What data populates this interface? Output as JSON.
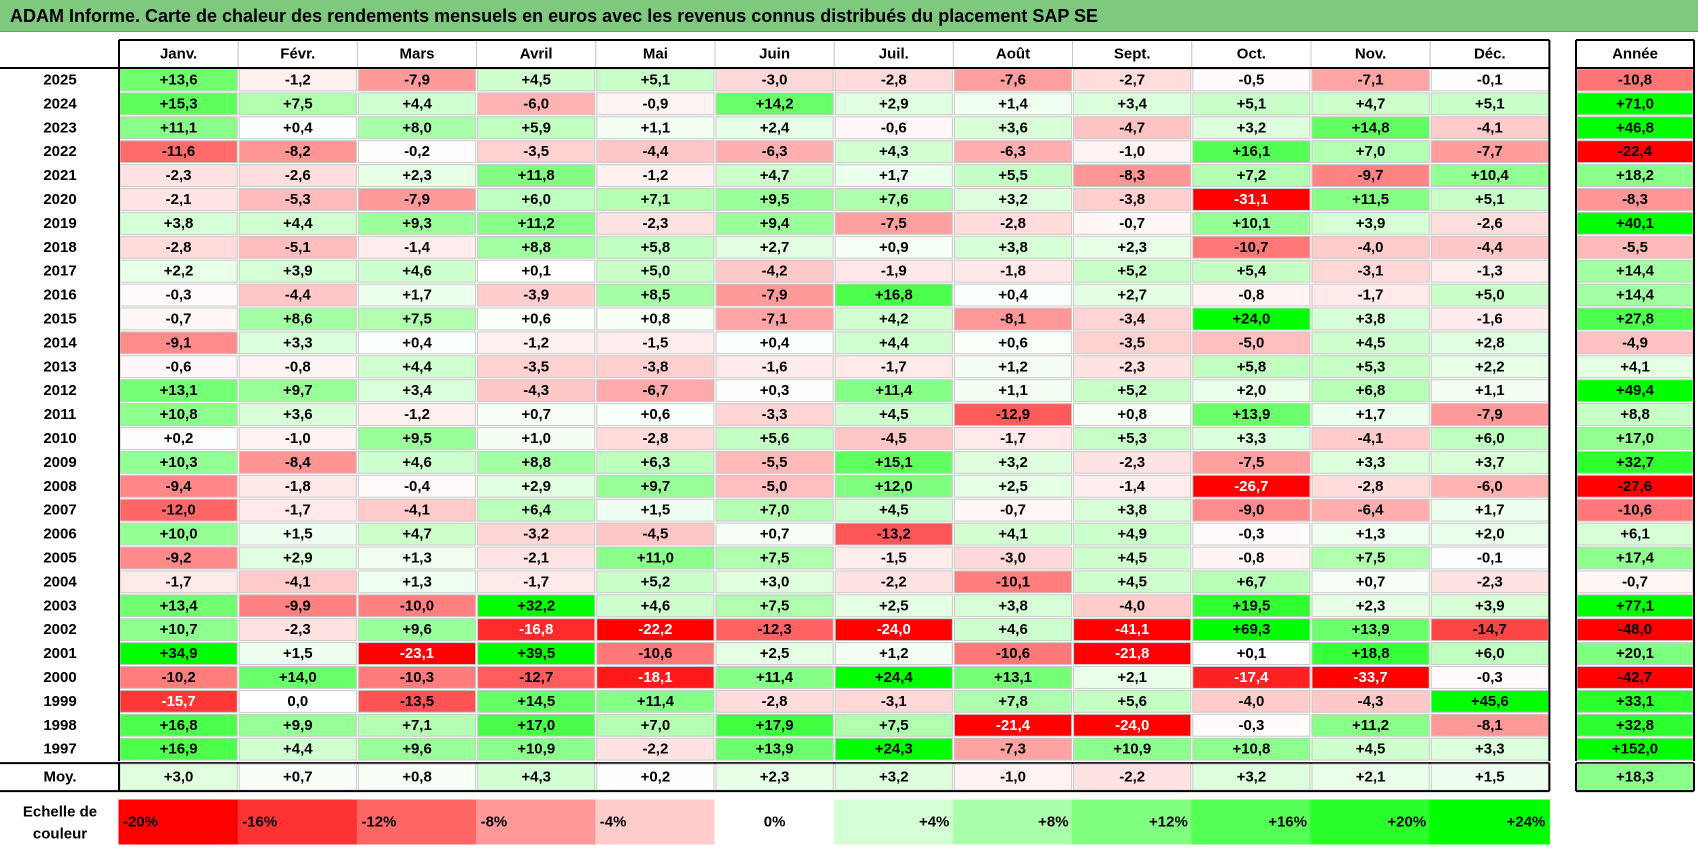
{
  "title": "ADAM Informe. Carte de chaleur des rendements mensuels en euros avec les revenus connus distribués du placement SAP SE",
  "chart_data": {
    "type": "heatmap",
    "columns": [
      "Janv.",
      "Févr.",
      "Mars",
      "Avril",
      "Mai",
      "Juin",
      "Juil.",
      "Août",
      "Sept.",
      "Oct.",
      "Nov.",
      "Déc."
    ],
    "year_column": "Année",
    "rows": [
      "2025",
      "2024",
      "2023",
      "2022",
      "2021",
      "2020",
      "2019",
      "2018",
      "2017",
      "2016",
      "2015",
      "2014",
      "2013",
      "2012",
      "2011",
      "2010",
      "2009",
      "2008",
      "2007",
      "2006",
      "2005",
      "2004",
      "2003",
      "2002",
      "2001",
      "2000",
      "1999",
      "1998",
      "1997"
    ],
    "values": [
      [
        "+13,6",
        "-1,2",
        "-7,9",
        "+4,5",
        "+5,1",
        "-3,0",
        "-2,8",
        "-7,6",
        "-2,7",
        "-0,5",
        "-7,1",
        "-0,1"
      ],
      [
        "+15,3",
        "+7,5",
        "+4,4",
        "-6,0",
        "-0,9",
        "+14,2",
        "+2,9",
        "+1,4",
        "+3,4",
        "+5,1",
        "+4,7",
        "+5,1"
      ],
      [
        "+11,1",
        "+0,4",
        "+8,0",
        "+5,9",
        "+1,1",
        "+2,4",
        "-0,6",
        "+3,6",
        "-4,7",
        "+3,2",
        "+14,8",
        "-4,1"
      ],
      [
        "-11,6",
        "-8,2",
        "-0,2",
        "-3,5",
        "-4,4",
        "-6,3",
        "+4,3",
        "-6,3",
        "-1,0",
        "+16,1",
        "+7,0",
        "-7,7"
      ],
      [
        "-2,3",
        "-2,6",
        "+2,3",
        "+11,8",
        "-1,2",
        "+4,7",
        "+1,7",
        "+5,5",
        "-8,3",
        "+7,2",
        "-9,7",
        "+10,4"
      ],
      [
        "-2,1",
        "-5,3",
        "-7,9",
        "+6,0",
        "+7,1",
        "+9,5",
        "+7,6",
        "+3,2",
        "-3,8",
        "-31,1",
        "+11,5",
        "+5,1"
      ],
      [
        "+3,8",
        "+4,4",
        "+9,3",
        "+11,2",
        "-2,3",
        "+9,4",
        "-7,5",
        "-2,8",
        "-0,7",
        "+10,1",
        "+3,9",
        "-2,6"
      ],
      [
        "-2,8",
        "-5,1",
        "-1,4",
        "+8,8",
        "+5,8",
        "+2,7",
        "+0,9",
        "+3,8",
        "+2,3",
        "-10,7",
        "-4,0",
        "-4,4"
      ],
      [
        "+2,2",
        "+3,9",
        "+4,6",
        "+0,1",
        "+5,0",
        "-4,2",
        "-1,9",
        "-1,8",
        "+5,2",
        "+5,4",
        "-3,1",
        "-1,3"
      ],
      [
        "-0,3",
        "-4,4",
        "+1,7",
        "-3,9",
        "+8,5",
        "-7,9",
        "+16,8",
        "+0,4",
        "+2,7",
        "-0,8",
        "-1,7",
        "+5,0"
      ],
      [
        "-0,7",
        "+8,6",
        "+7,5",
        "+0,6",
        "+0,8",
        "-7,1",
        "+4,2",
        "-8,1",
        "-3,4",
        "+24,0",
        "+3,8",
        "-1,6"
      ],
      [
        "-9,1",
        "+3,3",
        "+0,4",
        "-1,2",
        "-1,5",
        "+0,4",
        "+4,4",
        "+0,6",
        "-3,5",
        "-5,0",
        "+4,5",
        "+2,8"
      ],
      [
        "-0,6",
        "-0,8",
        "+4,4",
        "-3,5",
        "-3,8",
        "-1,6",
        "-1,7",
        "+1,2",
        "-2,3",
        "+5,8",
        "+5,3",
        "+2,2"
      ],
      [
        "+13,1",
        "+9,7",
        "+3,4",
        "-4,3",
        "-6,7",
        "+0,3",
        "+11,4",
        "+1,1",
        "+5,2",
        "+2,0",
        "+6,8",
        "+1,1"
      ],
      [
        "+10,8",
        "+3,6",
        "-1,2",
        "+0,7",
        "+0,6",
        "-3,3",
        "+4,5",
        "-12,9",
        "+0,8",
        "+13,9",
        "+1,7",
        "-7,9"
      ],
      [
        "+0,2",
        "-1,0",
        "+9,5",
        "+1,0",
        "-2,8",
        "+5,6",
        "-4,5",
        "-1,7",
        "+5,3",
        "+3,3",
        "-4,1",
        "+6,0"
      ],
      [
        "+10,3",
        "-8,4",
        "+4,6",
        "+8,8",
        "+6,3",
        "-5,5",
        "+15,1",
        "+3,2",
        "-2,3",
        "-7,5",
        "+3,3",
        "+3,7"
      ],
      [
        "-9,4",
        "-1,8",
        "-0,4",
        "+2,9",
        "+9,7",
        "-5,0",
        "+12,0",
        "+2,5",
        "-1,4",
        "-26,7",
        "-2,8",
        "-6,0"
      ],
      [
        "-12,0",
        "-1,7",
        "-4,1",
        "+6,4",
        "+1,5",
        "+7,0",
        "+4,5",
        "-0,7",
        "+3,8",
        "-9,0",
        "-6,4",
        "+1,7"
      ],
      [
        "+10,0",
        "+1,5",
        "+4,7",
        "-3,2",
        "-4,5",
        "+0,7",
        "-13,2",
        "+4,1",
        "+4,9",
        "-0,3",
        "+1,3",
        "+2,0"
      ],
      [
        "-9,2",
        "+2,9",
        "+1,3",
        "-2,1",
        "+11,0",
        "+7,5",
        "-1,5",
        "-3,0",
        "+4,5",
        "-0,8",
        "+7,5",
        "-0,1"
      ],
      [
        "-1,7",
        "-4,1",
        "+1,3",
        "-1,7",
        "+5,2",
        "+3,0",
        "-2,2",
        "-10,1",
        "+4,5",
        "+6,7",
        "+0,7",
        "-2,3"
      ],
      [
        "+13,4",
        "-9,9",
        "-10,0",
        "+32,2",
        "+4,6",
        "+7,5",
        "+2,5",
        "+3,8",
        "-4,0",
        "+19,5",
        "+2,3",
        "+3,9"
      ],
      [
        "+10,7",
        "-2,3",
        "+9,6",
        "-16,8",
        "-22,2",
        "-12,3",
        "-24,0",
        "+4,6",
        "-41,1",
        "+69,3",
        "+13,9",
        "-14,7"
      ],
      [
        "+34,9",
        "+1,5",
        "-23,1",
        "+39,5",
        "-10,6",
        "+2,5",
        "+1,2",
        "-10,6",
        "-21,8",
        "+0,1",
        "+18,8",
        "+6,0"
      ],
      [
        "-10,2",
        "+14,0",
        "-10,3",
        "-12,7",
        "-18,1",
        "+11,4",
        "+24,4",
        "+13,1",
        "+2,1",
        "-17,4",
        "-33,7",
        "-0,3"
      ],
      [
        "-15,7",
        "0,0",
        "-13,5",
        "+14,5",
        "+11,4",
        "-2,8",
        "-3,1",
        "+7,8",
        "+5,6",
        "-4,0",
        "-4,3",
        "+45,6"
      ],
      [
        "+16,8",
        "+9,9",
        "+7,1",
        "+17,0",
        "+7,0",
        "+17,9",
        "+7,5",
        "-21,4",
        "-24,0",
        "-0,3",
        "+11,2",
        "-8,1"
      ],
      [
        "+16,9",
        "+4,4",
        "+9,6",
        "+10,9",
        "-2,2",
        "+13,9",
        "+24,3",
        "-7,3",
        "+10,9",
        "+10,8",
        "+4,5",
        "+3,3"
      ]
    ],
    "year_values": [
      "-10,8",
      "+71,0",
      "+46,8",
      "-22,4",
      "+18,2",
      "-8,3",
      "+40,1",
      "-5,5",
      "+14,4",
      "+14,4",
      "+27,8",
      "-4,9",
      "+4,1",
      "+49,4",
      "+8,8",
      "+17,0",
      "+32,7",
      "-27,6",
      "-10,6",
      "+6,1",
      "+17,4",
      "-0,7",
      "+77,1",
      "-48,0",
      "+20,1",
      "-42,7",
      "+33,1",
      "+32,8",
      "+152,0"
    ],
    "average_label": "Moy.",
    "average_values": [
      "+3,0",
      "+0,7",
      "+0,8",
      "+4,3",
      "+0,2",
      "+2,3",
      "+3,2",
      "-1,0",
      "-2,2",
      "+3,2",
      "+2,1",
      "+1,5"
    ],
    "average_year": "+18,3",
    "scale_label_line1": "Echelle de",
    "scale_label_line2": "couleur",
    "scale": [
      {
        "label": "-20%",
        "value": -20
      },
      {
        "label": "-16%",
        "value": -16
      },
      {
        "label": "-12%",
        "value": -12
      },
      {
        "label": "-8%",
        "value": -8
      },
      {
        "label": "-4%",
        "value": -4
      },
      {
        "label": "0%",
        "value": 0
      },
      {
        "label": "+4%",
        "value": 4
      },
      {
        "label": "+8%",
        "value": 8
      },
      {
        "label": "+12%",
        "value": 12
      },
      {
        "label": "+16%",
        "value": 16
      },
      {
        "label": "+20%",
        "value": 20
      },
      {
        "label": "+24%",
        "value": 24
      }
    ],
    "colors": {
      "negative": "#ff0000",
      "neutral": "#ffffff",
      "positive": "#00ff00",
      "title_bg": "#7fc97f"
    }
  }
}
